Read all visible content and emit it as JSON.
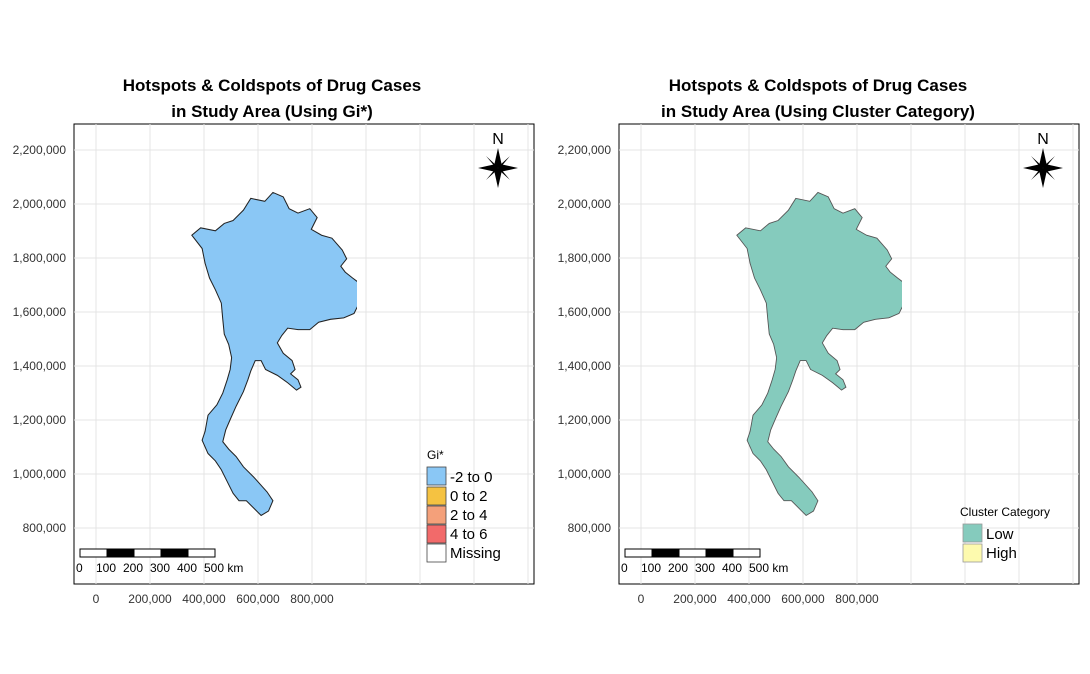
{
  "colors": {
    "neg2to0": "#8ac7f5",
    "zero2": "#f5c241",
    "two4": "#f4a07a",
    "four6": "#f26a6a",
    "missing": "#ffffff",
    "low": "#85cbbd",
    "high": "#fdfaae",
    "border": "#3a3a3a",
    "grid": "#e4e4e4"
  },
  "north_label": "N",
  "y_ticks": [
    "2,200,000",
    "2,000,000",
    "1,800,000",
    "1,600,000",
    "1,400,000",
    "1,200,000",
    "1,000,000",
    "800,000"
  ],
  "x_ticks": [
    "0",
    "200,000",
    "400,000",
    "600,000",
    "800,000"
  ],
  "scalebar_labels": [
    "0",
    "100",
    "200",
    "300",
    "400",
    "500 km"
  ],
  "left_panel": {
    "title_line1": "Hotspots & Coldspots of Drug Cases",
    "title_line2": "in Study Area (Using Gi*)",
    "legend_title": "Gi*",
    "legend_items": [
      {
        "label": "-2 to 0",
        "color": "#8ac7f5"
      },
      {
        "label": "0 to 2",
        "color": "#f5c241"
      },
      {
        "label": "2 to 4",
        "color": "#f4a07a"
      },
      {
        "label": "4 to 6",
        "color": "#f26a6a"
      },
      {
        "label": "Missing",
        "color": "#ffffff"
      }
    ]
  },
  "right_panel": {
    "title_line1": "Hotspots & Coldspots of Drug Cases",
    "title_line2": "in Study Area (Using Cluster Category)",
    "legend_title": "Cluster Category",
    "legend_items": [
      {
        "label": "Low",
        "color": "#85cbbd"
      },
      {
        "label": "High",
        "color": "#fdfaae"
      }
    ]
  }
}
